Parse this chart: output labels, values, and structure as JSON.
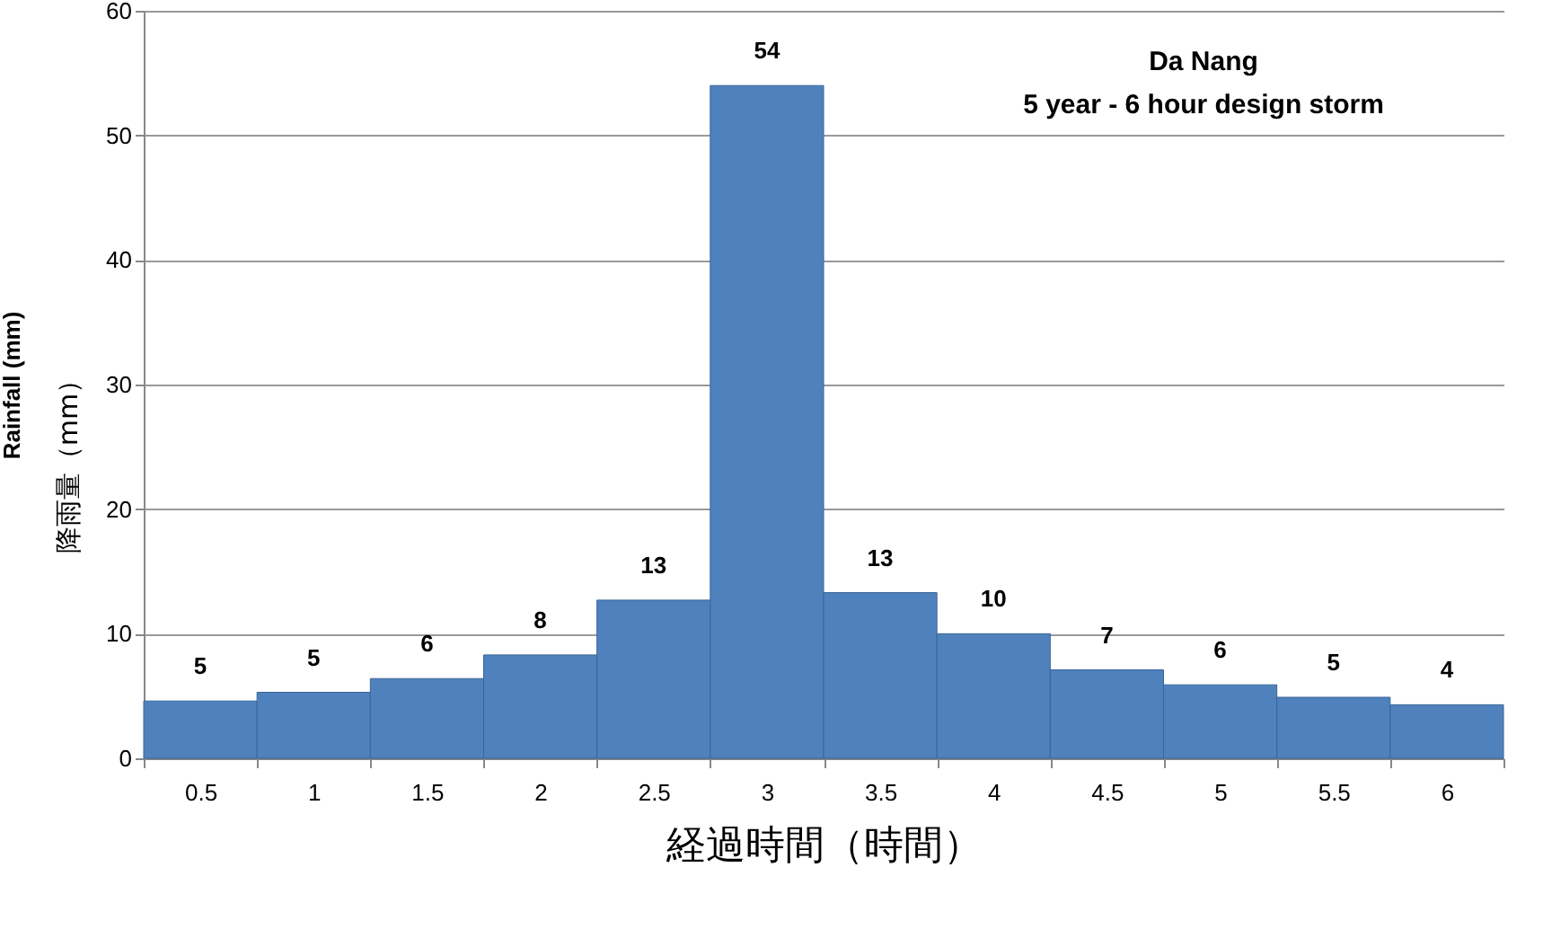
{
  "chart_data": {
    "type": "bar",
    "title": "Da Nang",
    "subtitle": "5 year - 6 hour design storm",
    "xlabel": "経過時間（時間）",
    "ylabel": "Rainfall (mm)",
    "annotations": [
      "降雨量（mm）"
    ],
    "categories": [
      "0.5",
      "1",
      "1.5",
      "2",
      "2.5",
      "3",
      "3.5",
      "4",
      "4.5",
      "5",
      "5.5",
      "6"
    ],
    "values": [
      4.6,
      5.3,
      6.4,
      8.3,
      12.7,
      54,
      13.3,
      10,
      7.1,
      5.9,
      4.9,
      4.3
    ],
    "value_labels": [
      "5",
      "5",
      "6",
      "8",
      "13",
      "54",
      "13",
      "10",
      "7",
      "6",
      "5",
      "4"
    ],
    "color": "#4f81bd",
    "ylim": [
      0,
      60
    ],
    "yticks": [
      0,
      10,
      20,
      30,
      40,
      50,
      60
    ],
    "grid": "y"
  }
}
